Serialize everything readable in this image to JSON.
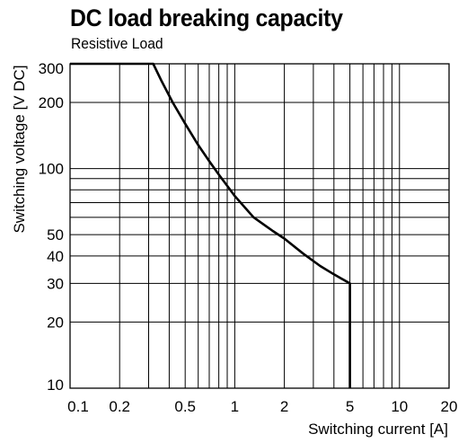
{
  "chart_data": {
    "type": "line",
    "title": "DC load breaking capacity",
    "subtitle": "Resistive Load",
    "xlabel": "Switching current [A]",
    "ylabel": "Switching voltage [V DC]",
    "x_scale": "log",
    "y_scale": "log",
    "xlim": [
      0.1,
      20
    ],
    "ylim": [
      10,
      300
    ],
    "x_ticks": [
      0.1,
      0.2,
      0.5,
      1,
      2,
      5,
      10,
      20
    ],
    "x_tick_labels": [
      "0.1",
      "0.2",
      "0.5",
      "1",
      "2",
      "5",
      "10",
      "20"
    ],
    "y_ticks": [
      10,
      20,
      30,
      40,
      50,
      100,
      200,
      300
    ],
    "y_tick_labels": [
      "10",
      "20",
      "30",
      "40",
      "50",
      "100",
      "200",
      "300"
    ],
    "x_grid": [
      0.1,
      0.2,
      0.3,
      0.4,
      0.5,
      0.6,
      0.7,
      0.8,
      0.9,
      1,
      2,
      3,
      4,
      5,
      6,
      7,
      8,
      9,
      10,
      20
    ],
    "y_grid": [
      10,
      20,
      30,
      40,
      50,
      60,
      70,
      80,
      90,
      100,
      200,
      300
    ],
    "grid": true,
    "series": [
      {
        "x": [
          0.1,
          0.32,
          0.36,
          0.42,
          0.5,
          0.6,
          0.7,
          0.8,
          1.0,
          1.3,
          1.7,
          2.0,
          2.6,
          3.3,
          4.0,
          5.0,
          5.0
        ],
        "y": [
          300,
          300,
          250,
          200,
          160,
          128,
          108,
          94,
          75,
          60,
          52,
          48,
          41,
          36,
          33,
          30,
          10
        ]
      }
    ]
  }
}
